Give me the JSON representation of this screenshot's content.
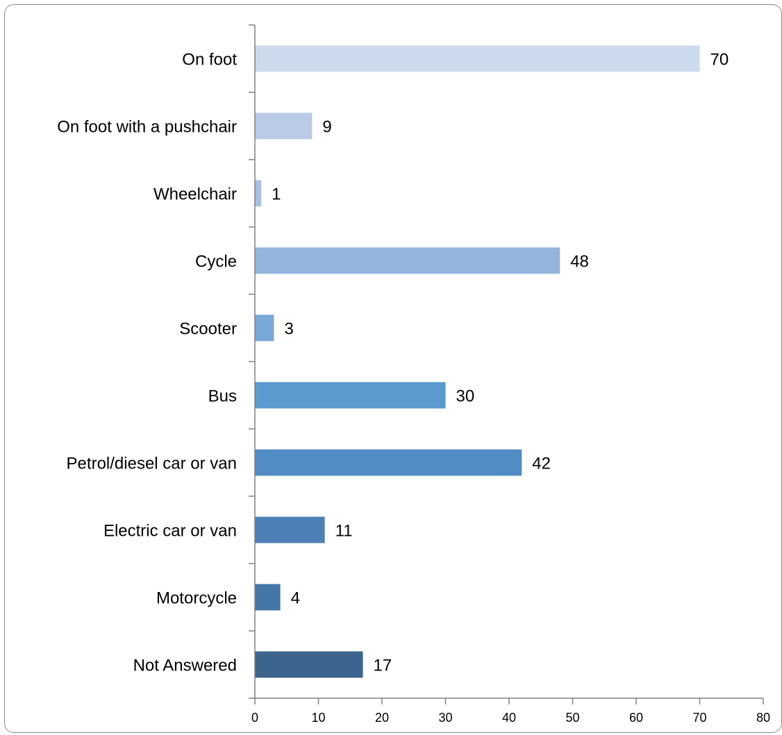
{
  "chart_data": {
    "type": "bar",
    "orientation": "horizontal",
    "categories": [
      "On foot",
      "On foot with a pushchair",
      "Wheelchair",
      "Cycle",
      "Scooter",
      "Bus",
      "Petrol/diesel car or van",
      "Electric car or van",
      "Motorcycle",
      "Not Answered"
    ],
    "values": [
      70,
      9,
      1,
      48,
      3,
      30,
      42,
      11,
      4,
      17
    ],
    "bar_colors": [
      "#ccdaed",
      "#bacbe7",
      "#a8c0e4",
      "#93b4dc",
      "#78a8d8",
      "#5b9acf",
      "#528cc5",
      "#4c80b7",
      "#4576a8",
      "#3c658d"
    ],
    "xlim": [
      0,
      80
    ],
    "x_ticks": [
      "0",
      "10",
      "20",
      "30",
      "40",
      "50",
      "60",
      "70",
      "80"
    ],
    "title": "",
    "xlabel": "",
    "ylabel": "",
    "grid": false,
    "data_labels": true
  }
}
